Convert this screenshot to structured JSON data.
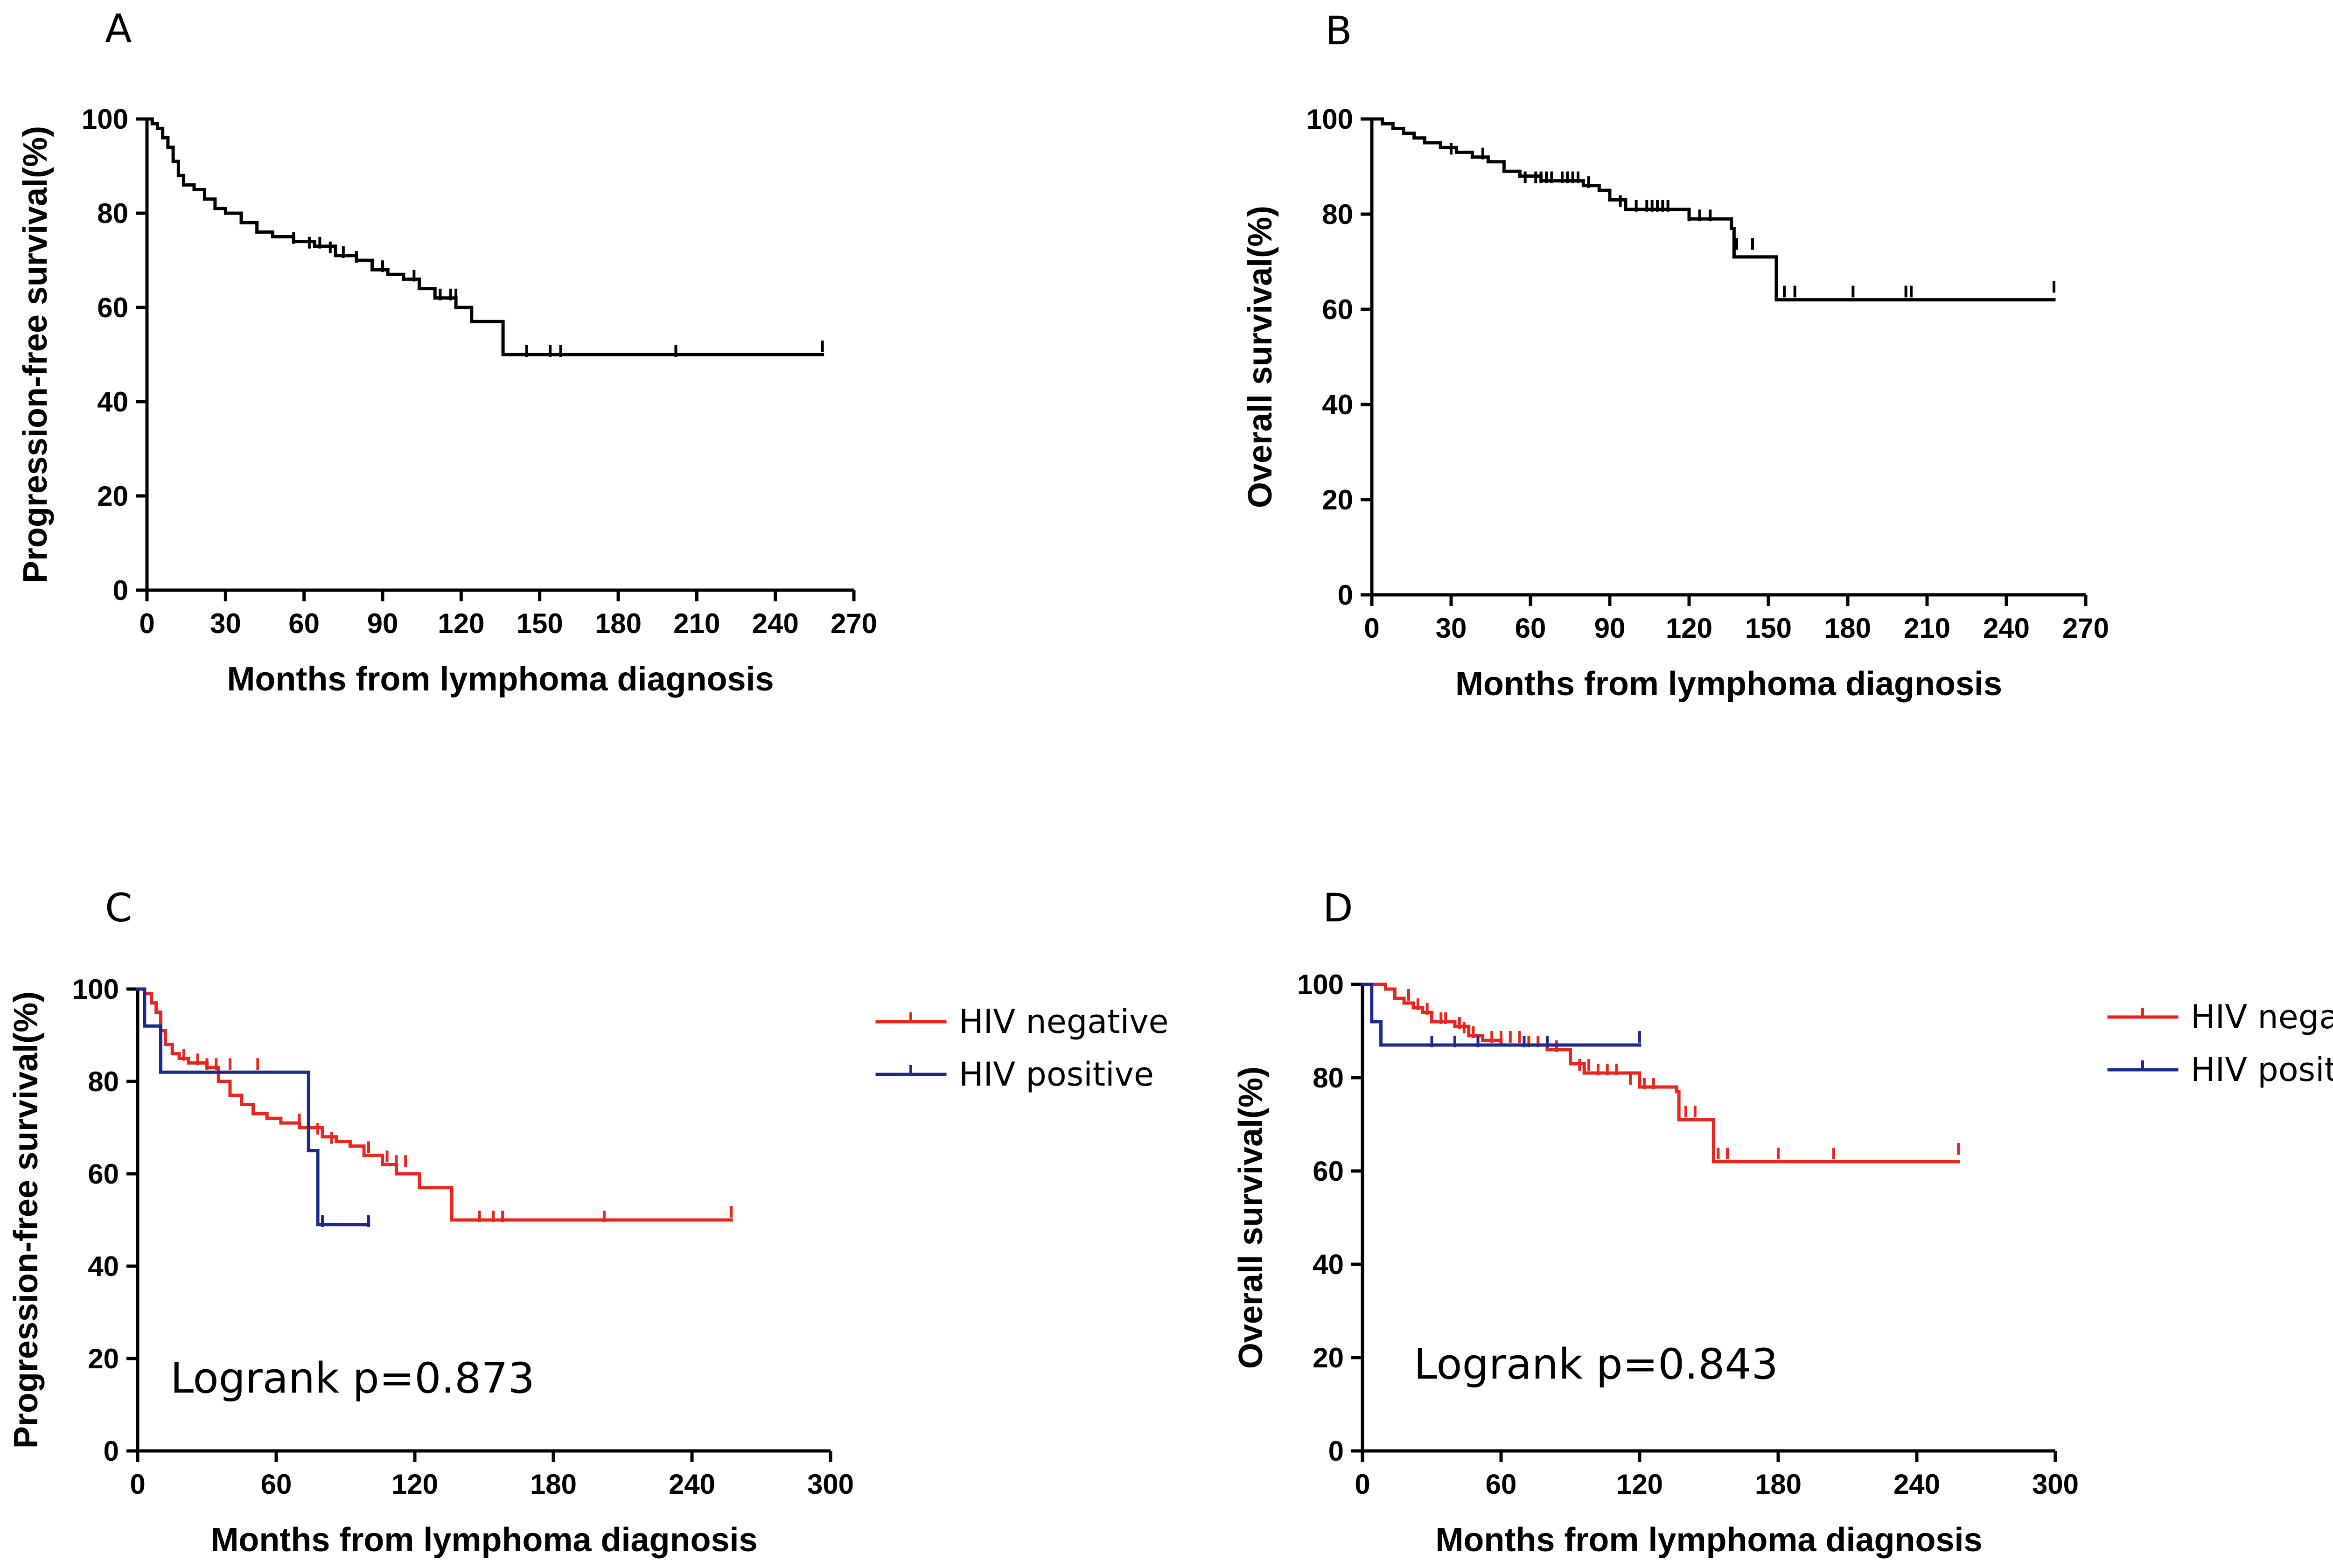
{
  "colors": {
    "hiv_negative": "#e8251f",
    "hiv_positive": "#1c2a8c",
    "single_curve": "#000000"
  },
  "chart_data": [
    {
      "panel": "A",
      "type": "line",
      "xlabel": "Months from lymphoma diagnosis",
      "ylabel": "Progression-free survival(%)",
      "xlim": [
        0,
        270
      ],
      "ylim": [
        0,
        100
      ],
      "x_ticks": [
        0,
        30,
        60,
        90,
        120,
        150,
        180,
        210,
        240,
        270
      ],
      "y_ticks": [
        0,
        20,
        40,
        60,
        80,
        100
      ],
      "series": [
        {
          "color_key": "single_curve",
          "steps": [
            [
              0,
              100
            ],
            [
              2,
              99
            ],
            [
              4,
              98
            ],
            [
              6,
              96
            ],
            [
              8,
              94
            ],
            [
              10,
              91
            ],
            [
              12,
              88
            ],
            [
              14,
              86
            ],
            [
              18,
              85
            ],
            [
              22,
              83
            ],
            [
              26,
              81
            ],
            [
              30,
              80
            ],
            [
              36,
              78
            ],
            [
              42,
              76
            ],
            [
              48,
              75
            ],
            [
              56,
              74
            ],
            [
              64,
              73
            ],
            [
              72,
              71
            ],
            [
              80,
              70
            ],
            [
              86,
              68
            ],
            [
              92,
              67
            ],
            [
              98,
              66
            ],
            [
              104,
              64
            ],
            [
              110,
              62
            ],
            [
              118,
              60
            ],
            [
              124,
              57
            ],
            [
              136,
              50
            ],
            [
              258,
              50
            ]
          ],
          "censored": [
            [
              56,
              74
            ],
            [
              62,
              73
            ],
            [
              66,
              73
            ],
            [
              70,
              72
            ],
            [
              75,
              71
            ],
            [
              80,
              70
            ],
            [
              90,
              68
            ],
            [
              102,
              66
            ],
            [
              112,
              62
            ],
            [
              116,
              62
            ],
            [
              118,
              62
            ],
            [
              124,
              58
            ],
            [
              145,
              50
            ],
            [
              154,
              50
            ],
            [
              158,
              50
            ],
            [
              202,
              50
            ],
            [
              258,
              51
            ]
          ]
        }
      ]
    },
    {
      "panel": "B",
      "type": "line",
      "xlabel": "Months from lymphoma diagnosis",
      "ylabel": "Overall survival(%)",
      "xlim": [
        0,
        270
      ],
      "ylim": [
        0,
        100
      ],
      "x_ticks": [
        0,
        30,
        60,
        90,
        120,
        150,
        180,
        210,
        240,
        270
      ],
      "y_ticks": [
        0,
        20,
        40,
        60,
        80,
        100
      ],
      "series": [
        {
          "color_key": "single_curve",
          "steps": [
            [
              0,
              100
            ],
            [
              4,
              99
            ],
            [
              8,
              98
            ],
            [
              12,
              97
            ],
            [
              16,
              96
            ],
            [
              20,
              95
            ],
            [
              26,
              94
            ],
            [
              32,
              93
            ],
            [
              38,
              92
            ],
            [
              44,
              91
            ],
            [
              50,
              89
            ],
            [
              56,
              88
            ],
            [
              64,
              87
            ],
            [
              80,
              86
            ],
            [
              86,
              85
            ],
            [
              90,
              83
            ],
            [
              96,
              81
            ],
            [
              112,
              81
            ],
            [
              120,
              79
            ],
            [
              136,
              77
            ],
            [
              137,
              71
            ],
            [
              152,
              71
            ],
            [
              153,
              62
            ],
            [
              258,
              62
            ]
          ],
          "censored": [
            [
              30,
              93
            ],
            [
              42,
              92
            ],
            [
              58,
              87
            ],
            [
              62,
              87
            ],
            [
              64,
              87
            ],
            [
              66,
              87
            ],
            [
              68,
              87
            ],
            [
              72,
              87
            ],
            [
              74,
              87
            ],
            [
              76,
              87
            ],
            [
              78,
              87
            ],
            [
              82,
              86
            ],
            [
              94,
              82
            ],
            [
              100,
              81
            ],
            [
              104,
              81
            ],
            [
              106,
              81
            ],
            [
              108,
              81
            ],
            [
              110,
              81
            ],
            [
              112,
              81
            ],
            [
              120,
              79
            ],
            [
              124,
              79
            ],
            [
              128,
              79
            ],
            [
              138,
              73
            ],
            [
              144,
              73
            ],
            [
              156,
              63
            ],
            [
              160,
              63
            ],
            [
              182,
              63
            ],
            [
              202,
              63
            ],
            [
              204,
              63
            ],
            [
              258,
              64
            ]
          ]
        }
      ]
    },
    {
      "panel": "C",
      "type": "line",
      "xlabel": "Months from lymphoma diagnosis",
      "ylabel": "Progression-free survival(%)",
      "xlim": [
        0,
        300
      ],
      "ylim": [
        0,
        100
      ],
      "x_ticks": [
        0,
        60,
        120,
        180,
        240,
        300
      ],
      "y_ticks": [
        0,
        20,
        40,
        60,
        80,
        100
      ],
      "annotation": "Logrank  p=0.873",
      "series": [
        {
          "name": "HIV negative",
          "color_key": "hiv_negative",
          "steps": [
            [
              0,
              100
            ],
            [
              3,
              99
            ],
            [
              6,
              97
            ],
            [
              8,
              95
            ],
            [
              10,
              91
            ],
            [
              12,
              88
            ],
            [
              15,
              86
            ],
            [
              18,
              85
            ],
            [
              22,
              84
            ],
            [
              30,
              83
            ],
            [
              35,
              80
            ],
            [
              40,
              77
            ],
            [
              45,
              75
            ],
            [
              50,
              73
            ],
            [
              56,
              72
            ],
            [
              62,
              71
            ],
            [
              70,
              70
            ],
            [
              80,
              68
            ],
            [
              86,
              67
            ],
            [
              92,
              66
            ],
            [
              98,
              64
            ],
            [
              106,
              62
            ],
            [
              112,
              60
            ],
            [
              122,
              57
            ],
            [
              136,
              50
            ],
            [
              257,
              50
            ]
          ],
          "censored": [
            [
              20,
              85
            ],
            [
              26,
              84
            ],
            [
              30,
              83
            ],
            [
              34,
              83
            ],
            [
              40,
              83
            ],
            [
              52,
              83
            ],
            [
              70,
              71
            ],
            [
              78,
              69
            ],
            [
              84,
              67
            ],
            [
              100,
              65
            ],
            [
              108,
              63
            ],
            [
              112,
              62
            ],
            [
              116,
              62
            ],
            [
              148,
              50
            ],
            [
              154,
              50
            ],
            [
              158,
              50
            ],
            [
              202,
              50
            ],
            [
              257,
              51
            ]
          ]
        },
        {
          "name": "HIV positive",
          "color_key": "hiv_positive",
          "steps": [
            [
              0,
              100
            ],
            [
              3,
              92
            ],
            [
              10,
              82
            ],
            [
              73,
              82
            ],
            [
              74,
              65
            ],
            [
              78,
              49
            ],
            [
              100,
              49
            ]
          ],
          "censored": [
            [
              80,
              49
            ],
            [
              100,
              49
            ]
          ]
        }
      ]
    },
    {
      "panel": "D",
      "type": "line",
      "xlabel": "Months from lymphoma diagnosis",
      "ylabel": "Overall survival(%)",
      "xlim": [
        0,
        300
      ],
      "ylim": [
        0,
        100
      ],
      "x_ticks": [
        0,
        60,
        120,
        180,
        240,
        300
      ],
      "y_ticks": [
        0,
        20,
        40,
        60,
        80,
        100
      ],
      "annotation": "Logrank  p=0.843",
      "series": [
        {
          "name": "HIV negative",
          "color_key": "hiv_negative",
          "steps": [
            [
              0,
              100
            ],
            [
              10,
              99
            ],
            [
              14,
              97
            ],
            [
              18,
              96
            ],
            [
              22,
              95
            ],
            [
              26,
              94
            ],
            [
              30,
              92
            ],
            [
              40,
              91
            ],
            [
              46,
              89
            ],
            [
              52,
              88
            ],
            [
              60,
              87
            ],
            [
              80,
              86
            ],
            [
              90,
              83
            ],
            [
              96,
              81
            ],
            [
              110,
              81
            ],
            [
              120,
              78
            ],
            [
              136,
              77
            ],
            [
              137,
              71
            ],
            [
              150,
              71
            ],
            [
              152,
              62
            ],
            [
              258,
              62
            ]
          ],
          "censored": [
            [
              20,
              97
            ],
            [
              24,
              95
            ],
            [
              28,
              94
            ],
            [
              34,
              92
            ],
            [
              36,
              92
            ],
            [
              42,
              91
            ],
            [
              44,
              90
            ],
            [
              48,
              89
            ],
            [
              56,
              88
            ],
            [
              60,
              88
            ],
            [
              64,
              88
            ],
            [
              68,
              88
            ],
            [
              72,
              87
            ],
            [
              76,
              87
            ],
            [
              80,
              87
            ],
            [
              84,
              86
            ],
            [
              94,
              82
            ],
            [
              98,
              82
            ],
            [
              102,
              81
            ],
            [
              106,
              81
            ],
            [
              110,
              81
            ],
            [
              116,
              79
            ],
            [
              122,
              78
            ],
            [
              126,
              78
            ],
            [
              140,
              72
            ],
            [
              144,
              72
            ],
            [
              154,
              63
            ],
            [
              158,
              63
            ],
            [
              180,
              63
            ],
            [
              204,
              63
            ],
            [
              258,
              64
            ]
          ]
        },
        {
          "name": "HIV positive",
          "color_key": "hiv_positive",
          "steps": [
            [
              0,
              100
            ],
            [
              4,
              92
            ],
            [
              8,
              87
            ],
            [
              120,
              87
            ]
          ],
          "censored": [
            [
              30,
              87
            ],
            [
              40,
              87
            ],
            [
              50,
              87
            ],
            [
              70,
              87
            ],
            [
              80,
              87
            ],
            [
              120,
              88
            ]
          ]
        }
      ]
    }
  ]
}
